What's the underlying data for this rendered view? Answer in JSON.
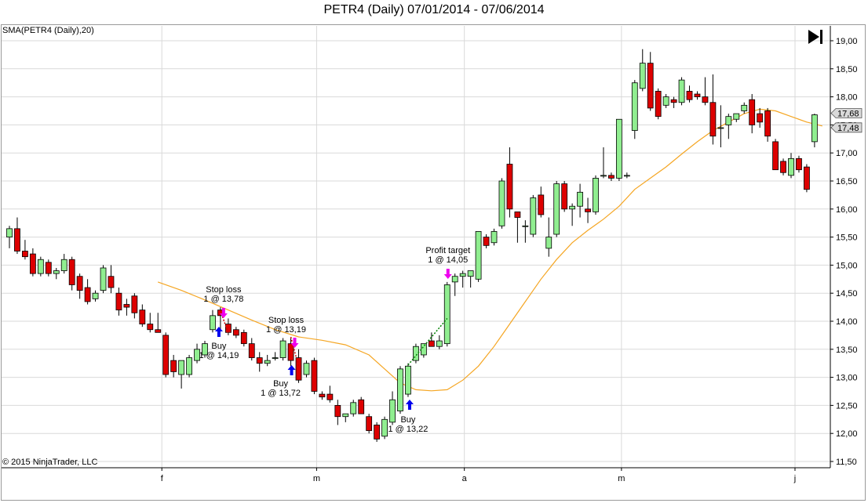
{
  "header": {
    "title": "PETR4 (Daily)  07/01/2014 - 07/06/2014"
  },
  "indicator_label": "SMA(PETR4 (Daily),20)",
  "copyright": "© 2015 NinjaTrader, LLC",
  "colors": {
    "up_candle": "#90ee90",
    "down_candle": "#dd0000",
    "sma_line": "#f5a623",
    "grid": "#d9d9d9",
    "buy_arrow": "#0000ee",
    "sell_arrow": "#ee00ee",
    "price_label_bg": "#d9d9d9"
  },
  "icons": {
    "scroll_to_end": "skip-to-end-icon"
  },
  "chart_data": {
    "type": "candlestick",
    "title": "PETR4 (Daily)  07/01/2014 - 07/06/2014",
    "ylim": [
      11.5,
      19.1
    ],
    "y_ticks": [
      "19,00",
      "18,50",
      "18,00",
      "17,50",
      "17,00",
      "16,50",
      "16,00",
      "15,50",
      "15,00",
      "14,50",
      "14,00",
      "13,50",
      "13,00",
      "12,50",
      "12,00",
      "11,50"
    ],
    "x_tick_labels": [
      {
        "index": 19.5,
        "label": "f"
      },
      {
        "index": 39.3,
        "label": "m"
      },
      {
        "index": 58.2,
        "label": "a"
      },
      {
        "index": 78.3,
        "label": "m"
      },
      {
        "index": 100.5,
        "label": "j"
      }
    ],
    "grid": true,
    "candles": [
      {
        "o": 15.5,
        "h": 15.7,
        "l": 15.3,
        "c": 15.65
      },
      {
        "o": 15.65,
        "h": 15.85,
        "l": 15.2,
        "c": 15.25
      },
      {
        "o": 15.25,
        "h": 15.45,
        "l": 15.1,
        "c": 15.15
      },
      {
        "o": 15.2,
        "h": 15.3,
        "l": 14.8,
        "c": 14.85
      },
      {
        "o": 14.85,
        "h": 15.15,
        "l": 14.8,
        "c": 15.1
      },
      {
        "o": 15.05,
        "h": 15.1,
        "l": 14.8,
        "c": 14.85
      },
      {
        "o": 14.85,
        "h": 14.95,
        "l": 14.75,
        "c": 14.9
      },
      {
        "o": 14.9,
        "h": 15.2,
        "l": 14.85,
        "c": 15.1
      },
      {
        "o": 15.1,
        "h": 15.15,
        "l": 14.55,
        "c": 14.65
      },
      {
        "o": 14.8,
        "h": 14.85,
        "l": 14.4,
        "c": 14.55
      },
      {
        "o": 14.6,
        "h": 14.75,
        "l": 14.3,
        "c": 14.35
      },
      {
        "o": 14.4,
        "h": 14.55,
        "l": 14.35,
        "c": 14.5
      },
      {
        "o": 14.55,
        "h": 15.0,
        "l": 14.5,
        "c": 14.95
      },
      {
        "o": 14.8,
        "h": 15.0,
        "l": 14.5,
        "c": 14.6
      },
      {
        "o": 14.5,
        "h": 14.6,
        "l": 14.1,
        "c": 14.2
      },
      {
        "o": 14.3,
        "h": 14.4,
        "l": 14.1,
        "c": 14.25
      },
      {
        "o": 14.45,
        "h": 14.5,
        "l": 14.05,
        "c": 14.15
      },
      {
        "o": 14.2,
        "h": 14.3,
        "l": 13.9,
        "c": 13.95
      },
      {
        "o": 13.95,
        "h": 14.15,
        "l": 13.8,
        "c": 13.85
      },
      {
        "o": 13.85,
        "h": 14.15,
        "l": 13.8,
        "c": 13.8
      },
      {
        "o": 13.75,
        "h": 13.8,
        "l": 13.0,
        "c": 13.05
      },
      {
        "o": 13.3,
        "h": 13.4,
        "l": 13.0,
        "c": 13.1
      },
      {
        "o": 13.05,
        "h": 13.3,
        "l": 12.8,
        "c": 13.3
      },
      {
        "o": 13.05,
        "h": 13.4,
        "l": 13.0,
        "c": 13.35
      },
      {
        "o": 13.3,
        "h": 13.6,
        "l": 13.25,
        "c": 13.5
      },
      {
        "o": 13.4,
        "h": 13.65,
        "l": 13.35,
        "c": 13.6
      },
      {
        "o": 13.85,
        "h": 14.2,
        "l": 13.8,
        "c": 14.1
      },
      {
        "o": 14.2,
        "h": 14.25,
        "l": 13.85,
        "c": 14.1
      },
      {
        "o": 13.95,
        "h": 14.05,
        "l": 13.75,
        "c": 13.8
      },
      {
        "o": 13.85,
        "h": 13.9,
        "l": 13.7,
        "c": 13.75
      },
      {
        "o": 13.8,
        "h": 13.85,
        "l": 13.55,
        "c": 13.6
      },
      {
        "o": 13.6,
        "h": 13.7,
        "l": 13.3,
        "c": 13.35
      },
      {
        "o": 13.35,
        "h": 13.45,
        "l": 13.1,
        "c": 13.25
      },
      {
        "o": 13.25,
        "h": 13.4,
        "l": 13.2,
        "c": 13.3
      },
      {
        "o": 13.35,
        "h": 13.45,
        "l": 13.3,
        "c": 13.35
      },
      {
        "o": 13.35,
        "h": 13.7,
        "l": 13.3,
        "c": 13.65
      },
      {
        "o": 13.6,
        "h": 13.7,
        "l": 13.2,
        "c": 13.3
      },
      {
        "o": 13.35,
        "h": 13.5,
        "l": 12.9,
        "c": 12.95
      },
      {
        "o": 13.05,
        "h": 13.3,
        "l": 13.0,
        "c": 13.25
      },
      {
        "o": 13.3,
        "h": 13.35,
        "l": 12.7,
        "c": 12.75
      },
      {
        "o": 12.7,
        "h": 12.75,
        "l": 12.6,
        "c": 12.65
      },
      {
        "o": 12.7,
        "h": 12.85,
        "l": 12.55,
        "c": 12.6
      },
      {
        "o": 12.5,
        "h": 12.6,
        "l": 12.15,
        "c": 12.3
      },
      {
        "o": 12.3,
        "h": 12.35,
        "l": 12.2,
        "c": 12.35
      },
      {
        "o": 12.35,
        "h": 12.6,
        "l": 12.3,
        "c": 12.55
      },
      {
        "o": 12.6,
        "h": 12.65,
        "l": 12.35,
        "c": 12.35
      },
      {
        "o": 12.3,
        "h": 12.35,
        "l": 12.0,
        "c": 12.05
      },
      {
        "o": 12.15,
        "h": 12.2,
        "l": 11.85,
        "c": 11.9
      },
      {
        "o": 11.95,
        "h": 12.3,
        "l": 11.9,
        "c": 12.25
      },
      {
        "o": 12.2,
        "h": 12.75,
        "l": 12.15,
        "c": 12.6
      },
      {
        "o": 12.4,
        "h": 13.2,
        "l": 12.35,
        "c": 13.15
      },
      {
        "o": 12.7,
        "h": 13.25,
        "l": 12.65,
        "c": 13.2
      },
      {
        "o": 13.3,
        "h": 13.6,
        "l": 13.25,
        "c": 13.55
      },
      {
        "o": 13.4,
        "h": 13.6,
        "l": 13.35,
        "c": 13.6
      },
      {
        "o": 13.65,
        "h": 13.8,
        "l": 13.55,
        "c": 13.55
      },
      {
        "o": 13.55,
        "h": 13.75,
        "l": 13.5,
        "c": 13.65
      },
      {
        "o": 13.6,
        "h": 14.7,
        "l": 13.55,
        "c": 14.65
      },
      {
        "o": 14.7,
        "h": 14.85,
        "l": 14.45,
        "c": 14.8
      },
      {
        "o": 14.8,
        "h": 14.9,
        "l": 14.6,
        "c": 14.85
      },
      {
        "o": 14.8,
        "h": 14.9,
        "l": 14.6,
        "c": 14.9
      },
      {
        "o": 14.75,
        "h": 15.6,
        "l": 14.7,
        "c": 15.6
      },
      {
        "o": 15.5,
        "h": 15.55,
        "l": 15.3,
        "c": 15.35
      },
      {
        "o": 15.4,
        "h": 15.65,
        "l": 15.35,
        "c": 15.6
      },
      {
        "o": 15.7,
        "h": 16.55,
        "l": 15.65,
        "c": 16.5
      },
      {
        "o": 16.8,
        "h": 17.1,
        "l": 15.85,
        "c": 16.0
      },
      {
        "o": 15.95,
        "h": 15.95,
        "l": 15.4,
        "c": 15.85
      },
      {
        "o": 15.7,
        "h": 15.8,
        "l": 15.4,
        "c": 15.7
      },
      {
        "o": 15.55,
        "h": 16.25,
        "l": 15.5,
        "c": 16.2
      },
      {
        "o": 16.25,
        "h": 16.4,
        "l": 15.85,
        "c": 15.9
      },
      {
        "o": 15.3,
        "h": 15.85,
        "l": 15.15,
        "c": 15.5
      },
      {
        "o": 15.55,
        "h": 16.5,
        "l": 15.5,
        "c": 16.45
      },
      {
        "o": 16.45,
        "h": 16.5,
        "l": 15.95,
        "c": 16.0
      },
      {
        "o": 16.0,
        "h": 16.1,
        "l": 15.7,
        "c": 16.05
      },
      {
        "o": 16.05,
        "h": 16.45,
        "l": 15.85,
        "c": 16.3
      },
      {
        "o": 16.0,
        "h": 16.2,
        "l": 15.75,
        "c": 15.95
      },
      {
        "o": 15.95,
        "h": 16.6,
        "l": 15.9,
        "c": 16.55
      },
      {
        "o": 16.6,
        "h": 17.1,
        "l": 16.55,
        "c": 16.6
      },
      {
        "o": 16.6,
        "h": 16.65,
        "l": 16.5,
        "c": 16.55
      },
      {
        "o": 16.55,
        "h": 17.6,
        "l": 16.5,
        "c": 17.6
      },
      {
        "o": 16.6,
        "h": 16.65,
        "l": 16.55,
        "c": 16.6
      },
      {
        "o": 17.4,
        "h": 18.3,
        "l": 17.25,
        "c": 18.25
      },
      {
        "o": 18.15,
        "h": 18.85,
        "l": 18.1,
        "c": 18.6
      },
      {
        "o": 18.6,
        "h": 18.8,
        "l": 17.75,
        "c": 17.8
      },
      {
        "o": 18.1,
        "h": 18.15,
        "l": 17.6,
        "c": 17.65
      },
      {
        "o": 17.85,
        "h": 18.05,
        "l": 17.8,
        "c": 18.0
      },
      {
        "o": 17.95,
        "h": 18.0,
        "l": 17.8,
        "c": 17.9
      },
      {
        "o": 17.9,
        "h": 18.35,
        "l": 17.85,
        "c": 18.3
      },
      {
        "o": 18.1,
        "h": 18.2,
        "l": 17.9,
        "c": 17.95
      },
      {
        "o": 18.05,
        "h": 18.1,
        "l": 17.95,
        "c": 18.0
      },
      {
        "o": 18.0,
        "h": 18.35,
        "l": 17.85,
        "c": 17.9
      },
      {
        "o": 17.9,
        "h": 18.4,
        "l": 17.15,
        "c": 17.3
      },
      {
        "o": 17.45,
        "h": 17.85,
        "l": 17.1,
        "c": 17.45
      },
      {
        "o": 17.5,
        "h": 17.7,
        "l": 17.25,
        "c": 17.65
      },
      {
        "o": 17.6,
        "h": 17.7,
        "l": 17.55,
        "c": 17.7
      },
      {
        "o": 17.75,
        "h": 17.9,
        "l": 17.7,
        "c": 17.85
      },
      {
        "o": 17.95,
        "h": 18.05,
        "l": 17.35,
        "c": 17.5
      },
      {
        "o": 17.7,
        "h": 17.8,
        "l": 17.45,
        "c": 17.55
      },
      {
        "o": 17.75,
        "h": 17.8,
        "l": 17.2,
        "c": 17.3
      },
      {
        "o": 17.2,
        "h": 17.25,
        "l": 16.7,
        "c": 16.7
      },
      {
        "o": 16.85,
        "h": 16.9,
        "l": 16.6,
        "c": 16.65
      },
      {
        "o": 16.6,
        "h": 17.0,
        "l": 16.55,
        "c": 16.9
      },
      {
        "o": 16.9,
        "h": 16.95,
        "l": 16.65,
        "c": 16.7
      },
      {
        "o": 16.75,
        "h": 16.8,
        "l": 16.3,
        "c": 16.35
      },
      {
        "o": 17.2,
        "h": 17.7,
        "l": 17.1,
        "c": 17.68
      }
    ],
    "sma": {
      "name": "SMA(PETR4 (Daily),20)",
      "period": 20,
      "values": [
        [
          19,
          14.7
        ],
        [
          22,
          14.55
        ],
        [
          25,
          14.38
        ],
        [
          28,
          14.2
        ],
        [
          31,
          14.02
        ],
        [
          34,
          13.85
        ],
        [
          37,
          13.72
        ],
        [
          40,
          13.66
        ],
        [
          43,
          13.58
        ],
        [
          46,
          13.4
        ],
        [
          48,
          13.15
        ],
        [
          50,
          12.9
        ],
        [
          52,
          12.78
        ],
        [
          54,
          12.76
        ],
        [
          56,
          12.78
        ],
        [
          58,
          12.95
        ],
        [
          60,
          13.2
        ],
        [
          62,
          13.55
        ],
        [
          64,
          13.95
        ],
        [
          66,
          14.35
        ],
        [
          68,
          14.75
        ],
        [
          70,
          15.1
        ],
        [
          72,
          15.4
        ],
        [
          74,
          15.62
        ],
        [
          76,
          15.82
        ],
        [
          78,
          16.05
        ],
        [
          80,
          16.35
        ],
        [
          82,
          16.55
        ],
        [
          84,
          16.75
        ],
        [
          86,
          16.98
        ],
        [
          88,
          17.2
        ],
        [
          90,
          17.4
        ],
        [
          92,
          17.55
        ],
        [
          94,
          17.7
        ],
        [
          96,
          17.78
        ],
        [
          98,
          17.75
        ],
        [
          100,
          17.65
        ],
        [
          102,
          17.55
        ],
        [
          104,
          17.48
        ]
      ]
    },
    "last_price_labels": [
      "17,68",
      "17,48"
    ],
    "trades": [
      {
        "type": "Buy",
        "label": "Buy",
        "detail": "1 @ 14,19",
        "index": 27
      },
      {
        "type": "Sell",
        "label": "Stop loss",
        "detail": "1 @ 13,78",
        "index": 28
      },
      {
        "type": "Buy",
        "label": "Buy",
        "detail": "1 @ 13,72",
        "index": 36
      },
      {
        "type": "Sell",
        "label": "Stop loss",
        "detail": "1 @ 13,19",
        "index": 37
      },
      {
        "type": "Buy",
        "label": "Buy",
        "detail": "1 @ 13,22",
        "index": 51
      },
      {
        "type": "Sell",
        "label": "Profit target",
        "detail": "1 @ 14,05",
        "index": 56
      }
    ]
  }
}
